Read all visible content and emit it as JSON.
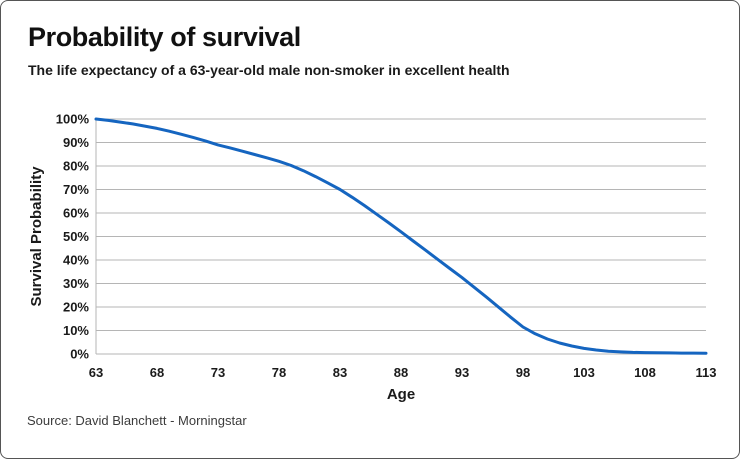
{
  "header": {
    "title": "Probability of survival",
    "subtitle": "The life expectancy of a 63-year-old male non-smoker in excellent health"
  },
  "footer": {
    "source": "Source: David Blanchett - Morningstar"
  },
  "colors": {
    "accent": "#1565c0",
    "grid": "#b5b5b5",
    "axis": "#b5b5b5",
    "text": "#1a1a1a",
    "border": "#555555"
  },
  "chart_data": {
    "type": "line",
    "title": "Probability of survival",
    "subtitle": "The life expectancy of a 63-year-old male non-smoker in excellent health",
    "xlabel": "Age",
    "ylabel": "Survival Probability",
    "xlim": [
      63,
      113
    ],
    "ylim": [
      0,
      100
    ],
    "xticks": [
      63,
      68,
      73,
      78,
      83,
      88,
      93,
      98,
      103,
      108,
      113
    ],
    "ytick_values": [
      100,
      90,
      80,
      70,
      60,
      50,
      40,
      30,
      20,
      10,
      0
    ],
    "ytick_labels": [
      "100%",
      "90%",
      "80%",
      "70%",
      "60%",
      "50%",
      "40%",
      "30%",
      "20%",
      "10%",
      "0%"
    ],
    "grid": "horizontal",
    "legend": "none",
    "line_color": "#1565c0",
    "line_width": 3,
    "series": [
      {
        "name": "Survival Probability",
        "x": [
          63,
          64,
          65,
          66,
          67,
          68,
          69,
          70,
          71,
          72,
          73,
          74,
          75,
          76,
          77,
          78,
          79,
          80,
          81,
          82,
          83,
          84,
          85,
          86,
          87,
          88,
          89,
          90,
          91,
          92,
          93,
          94,
          95,
          96,
          97,
          98,
          99,
          100,
          101,
          102,
          103,
          104,
          105,
          106,
          107,
          108,
          109,
          110,
          111,
          112,
          113
        ],
        "y": [
          100,
          99.4,
          98.7,
          97.9,
          97.0,
          96.0,
          94.8,
          93.5,
          92.1,
          90.6,
          89.0,
          87.7,
          86.3,
          84.9,
          83.5,
          82.0,
          80.2,
          78.0,
          75.5,
          72.8,
          70.0,
          66.7,
          63.2,
          59.5,
          55.8,
          52.0,
          48.1,
          44.2,
          40.3,
          36.4,
          32.5,
          28.4,
          24.2,
          19.9,
          15.6,
          11.5,
          8.6,
          6.4,
          4.7,
          3.4,
          2.4,
          1.7,
          1.2,
          0.9,
          0.7,
          0.6,
          0.5,
          0.45,
          0.4,
          0.38,
          0.35
        ]
      }
    ]
  }
}
